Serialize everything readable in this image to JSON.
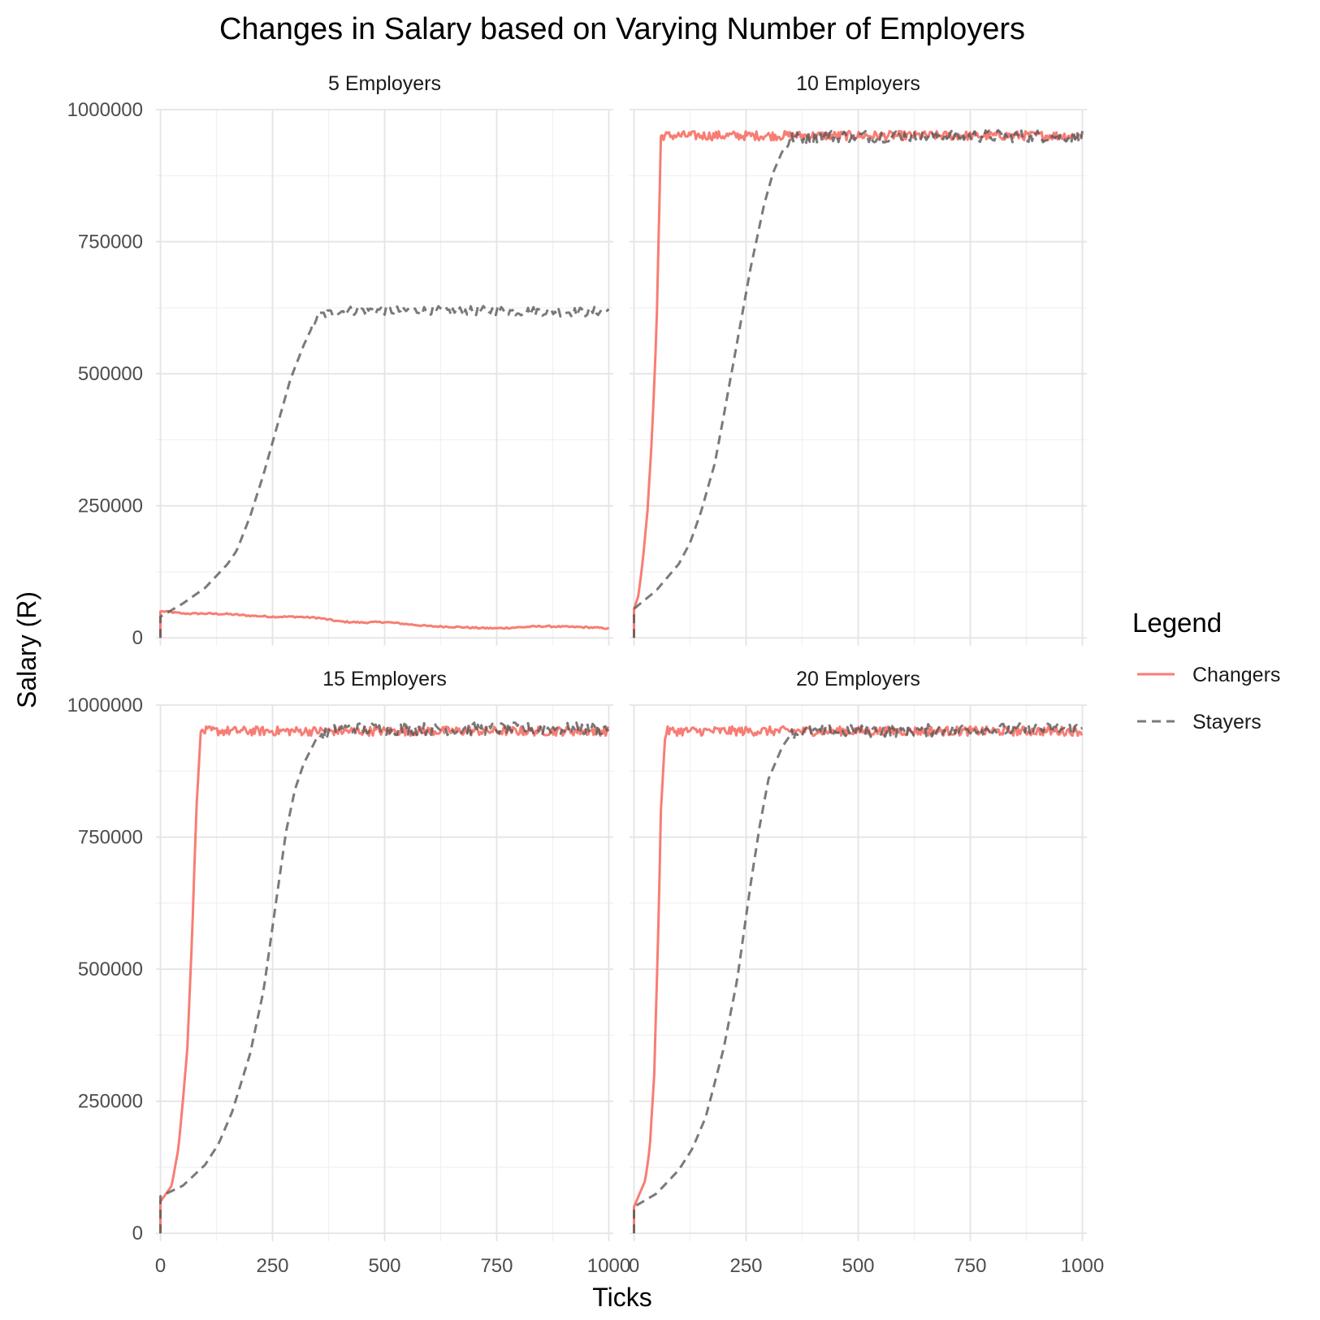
{
  "chart_data": {
    "type": "line",
    "title": "Changes in Salary based on Varying Number of Employers",
    "xlabel": "Ticks",
    "ylabel": "Salary (R)",
    "xlim": [
      -10,
      1010
    ],
    "ylim": [
      -15000,
      1000000
    ],
    "x_ticks": [
      0,
      250,
      500,
      750,
      1000
    ],
    "x_tick_labels": [
      "0",
      "250",
      "500",
      "750",
      "1000"
    ],
    "y_ticks": [
      0,
      250000,
      500000,
      750000,
      1000000
    ],
    "y_tick_labels": [
      "0",
      "250000",
      "500000",
      "750000",
      "1000000"
    ],
    "grid": true,
    "legend": {
      "title": "Legend",
      "position": "right",
      "entries": [
        {
          "name": "Changers",
          "color": "#F8766D",
          "dash": "solid"
        },
        {
          "name": "Stayers",
          "color": "#595959",
          "dash": "dashed"
        }
      ]
    },
    "panels": [
      {
        "label": "5 Employers",
        "series": [
          {
            "name": "Changers",
            "points": [
              [
                0,
                0
              ],
              [
                0,
                50000
              ],
              [
                10,
                50000
              ],
              [
                50,
                46000
              ],
              [
                100,
                46000
              ],
              [
                150,
                45000
              ],
              [
                200,
                42000
              ],
              [
                250,
                40000
              ],
              [
                300,
                40000
              ],
              [
                350,
                38000
              ],
              [
                400,
                31000
              ],
              [
                450,
                29000
              ],
              [
                500,
                30000
              ],
              [
                550,
                26000
              ],
              [
                600,
                22000
              ],
              [
                650,
                21000
              ],
              [
                700,
                19000
              ],
              [
                750,
                18000
              ],
              [
                800,
                20000
              ],
              [
                850,
                22000
              ],
              [
                900,
                21000
              ],
              [
                950,
                20000
              ],
              [
                1000,
                18000
              ]
            ],
            "noise": {
              "from": 0,
              "amp": 1500,
              "step": 4
            }
          },
          {
            "name": "Stayers",
            "points": [
              [
                0,
                0
              ],
              [
                0,
                40000
              ],
              [
                50,
                65000
              ],
              [
                100,
                95000
              ],
              [
                150,
                140000
              ],
              [
                170,
                165000
              ],
              [
                200,
                230000
              ],
              [
                230,
                310000
              ],
              [
                260,
                400000
              ],
              [
                290,
                490000
              ],
              [
                320,
                555000
              ],
              [
                350,
                610000
              ],
              [
                400,
                618000
              ],
              [
                450,
                621000
              ],
              [
                500,
                620000
              ],
              [
                550,
                619000
              ],
              [
                600,
                620000
              ],
              [
                650,
                618000
              ],
              [
                700,
                619000
              ],
              [
                750,
                620000
              ],
              [
                800,
                618000
              ],
              [
                850,
                619000
              ],
              [
                900,
                617000
              ],
              [
                950,
                617000
              ],
              [
                1000,
                620000
              ]
            ],
            "noise": {
              "from": 340,
              "amp": 9000,
              "step": 4
            }
          }
        ]
      },
      {
        "label": "10 Employers",
        "series": [
          {
            "name": "Changers",
            "points": [
              [
                0,
                0
              ],
              [
                0,
                55000
              ],
              [
                10,
                80000
              ],
              [
                20,
                150000
              ],
              [
                30,
                240000
              ],
              [
                40,
                380000
              ],
              [
                50,
                580000
              ],
              [
                55,
                760000
              ],
              [
                60,
                950000
              ],
              [
                250,
                950000
              ],
              [
                300,
                950000
              ],
              [
                1000,
                950000
              ]
            ],
            "noise": {
              "from": 62,
              "amp": 11000,
              "step": 3
            }
          },
          {
            "name": "Stayers",
            "points": [
              [
                0,
                0
              ],
              [
                0,
                55000
              ],
              [
                50,
                90000
              ],
              [
                100,
                140000
              ],
              [
                125,
                180000
              ],
              [
                150,
                240000
              ],
              [
                180,
                330000
              ],
              [
                200,
                420000
              ],
              [
                230,
                560000
              ],
              [
                260,
                700000
              ],
              [
                290,
                820000
              ],
              [
                310,
                880000
              ],
              [
                330,
                920000
              ],
              [
                350,
                945000
              ],
              [
                400,
                950000
              ],
              [
                1000,
                950000
              ]
            ],
            "noise": {
              "from": 340,
              "amp": 12000,
              "step": 4
            }
          }
        ]
      },
      {
        "label": "15 Employers",
        "series": [
          {
            "name": "Changers",
            "points": [
              [
                0,
                0
              ],
              [
                0,
                60000
              ],
              [
                25,
                90000
              ],
              [
                40,
                160000
              ],
              [
                50,
                250000
              ],
              [
                60,
                350000
              ],
              [
                70,
                550000
              ],
              [
                80,
                800000
              ],
              [
                90,
                950000
              ],
              [
                1000,
                950000
              ]
            ],
            "noise": {
              "from": 92,
              "amp": 11000,
              "step": 3
            }
          },
          {
            "name": "Stayers",
            "points": [
              [
                0,
                0
              ],
              [
                0,
                70000
              ],
              [
                50,
                90000
              ],
              [
                100,
                130000
              ],
              [
                130,
                170000
              ],
              [
                160,
                230000
              ],
              [
                200,
                340000
              ],
              [
                230,
                460000
              ],
              [
                260,
                640000
              ],
              [
                280,
                760000
              ],
              [
                300,
                840000
              ],
              [
                320,
                890000
              ],
              [
                350,
                940000
              ],
              [
                400,
                955000
              ],
              [
                1000,
                955000
              ]
            ],
            "noise": {
              "from": 350,
              "amp": 12000,
              "step": 4
            }
          }
        ]
      },
      {
        "label": "20 Employers",
        "series": [
          {
            "name": "Changers",
            "points": [
              [
                0,
                0
              ],
              [
                0,
                50000
              ],
              [
                15,
                80000
              ],
              [
                25,
                100000
              ],
              [
                35,
                160000
              ],
              [
                45,
                300000
              ],
              [
                55,
                600000
              ],
              [
                60,
                800000
              ],
              [
                70,
                950000
              ],
              [
                1000,
                950000
              ]
            ],
            "noise": {
              "from": 72,
              "amp": 11000,
              "step": 3
            }
          },
          {
            "name": "Stayers",
            "points": [
              [
                0,
                0
              ],
              [
                0,
                50000
              ],
              [
                50,
                75000
              ],
              [
                100,
                120000
              ],
              [
                130,
                160000
              ],
              [
                160,
                220000
              ],
              [
                200,
                350000
              ],
              [
                230,
                480000
              ],
              [
                260,
                660000
              ],
              [
                280,
                770000
              ],
              [
                300,
                860000
              ],
              [
                330,
                920000
              ],
              [
                350,
                945000
              ],
              [
                400,
                950000
              ],
              [
                1000,
                955000
              ]
            ],
            "noise": {
              "from": 350,
              "amp": 12000,
              "step": 4
            }
          }
        ]
      }
    ]
  }
}
